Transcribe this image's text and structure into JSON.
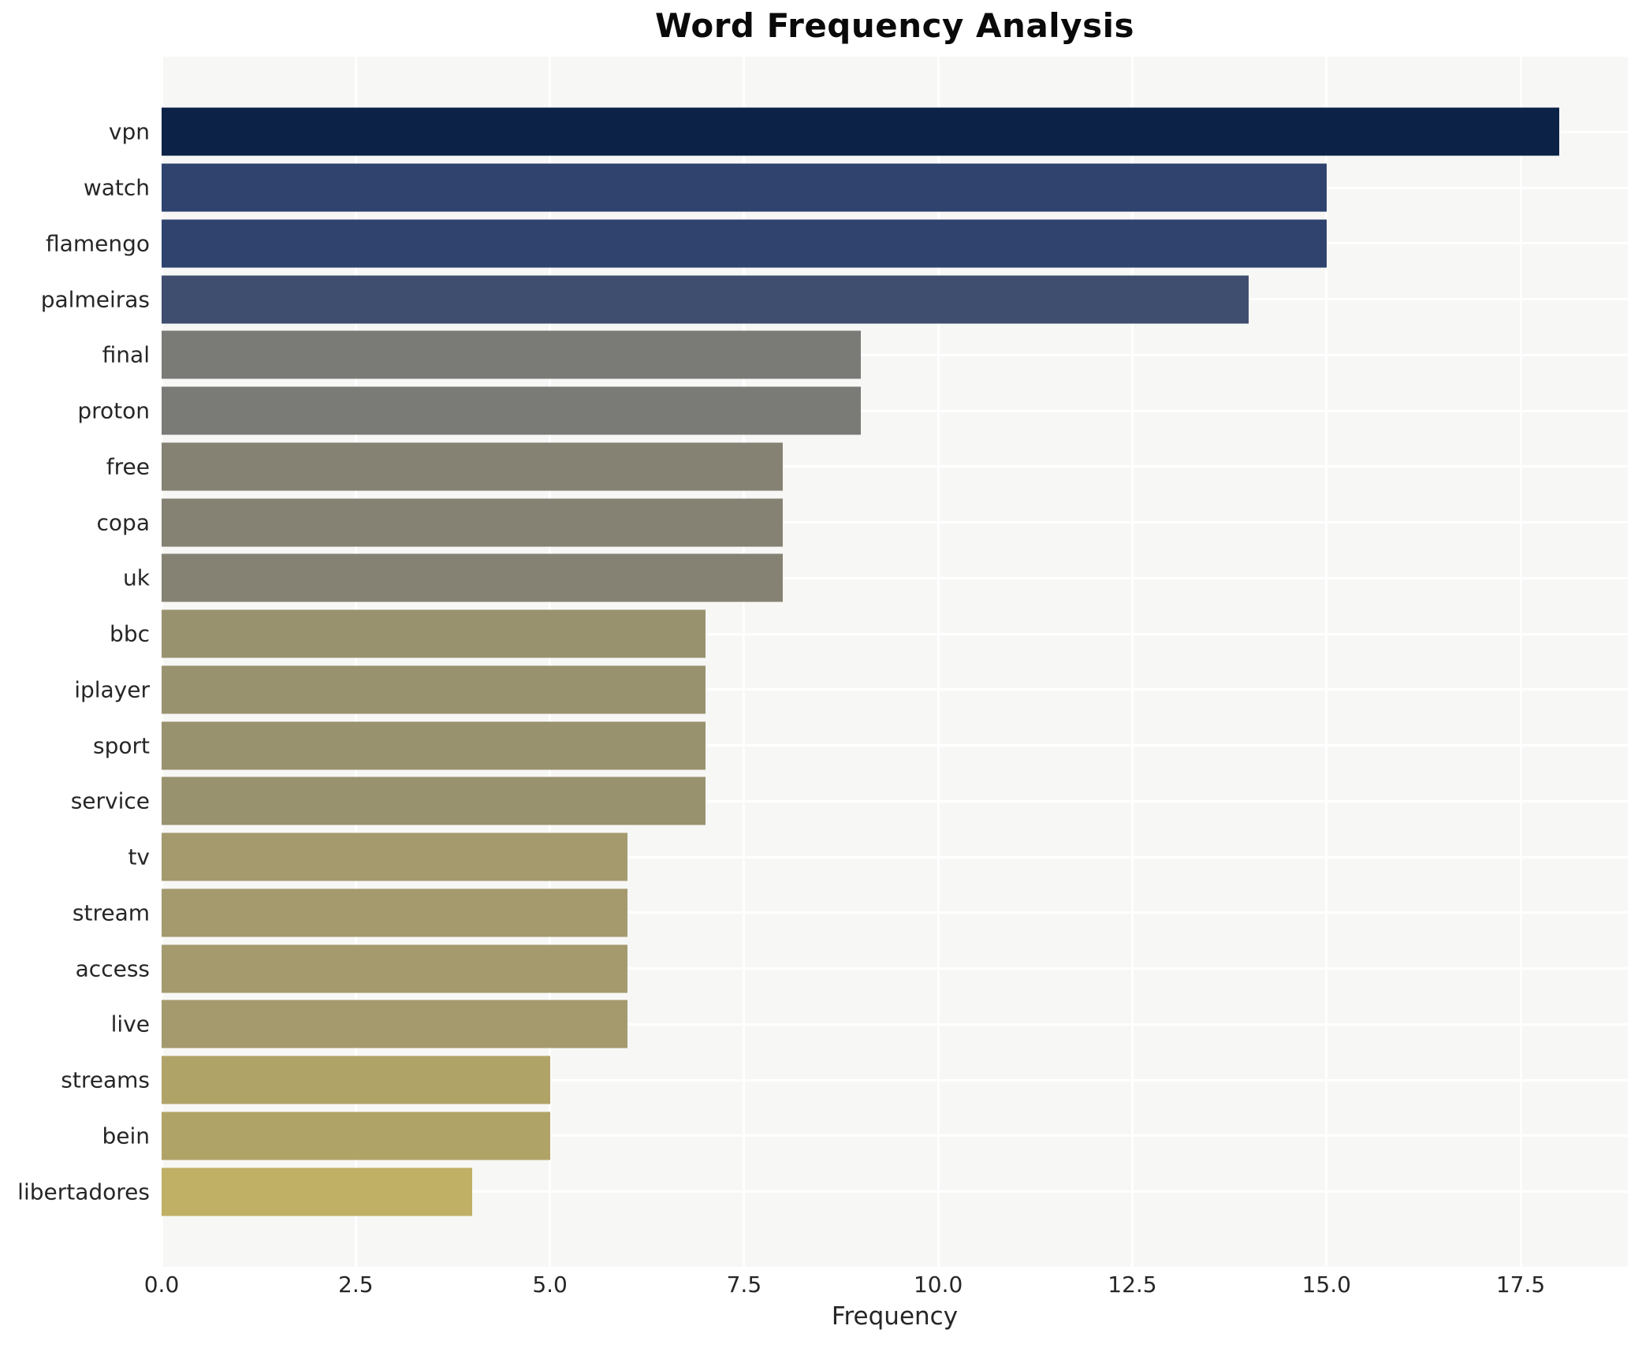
{
  "chart_data": {
    "type": "bar",
    "orientation": "horizontal",
    "title": "Word Frequency Analysis",
    "xlabel": "Frequency",
    "ylabel": "",
    "categories": [
      "vpn",
      "watch",
      "flamengo",
      "palmeiras",
      "final",
      "proton",
      "free",
      "copa",
      "uk",
      "bbc",
      "iplayer",
      "sport",
      "service",
      "tv",
      "stream",
      "access",
      "live",
      "streams",
      "bein",
      "libertadores"
    ],
    "values": [
      18,
      15,
      15,
      14,
      9,
      9,
      8,
      8,
      8,
      7,
      7,
      7,
      7,
      6,
      6,
      6,
      6,
      5,
      5,
      4
    ],
    "colors": [
      "#0c2246",
      "#2f436e",
      "#2f436e",
      "#3f4d6f",
      "#7a7a76",
      "#7a7a76",
      "#868273",
      "#868273",
      "#868273",
      "#99926f",
      "#99926f",
      "#99926f",
      "#99926f",
      "#a49a6e",
      "#a49a6e",
      "#a49a6e",
      "#a49a6e",
      "#b0a367",
      "#b0a367",
      "#bfb066"
    ],
    "xlim": [
      0,
      18.88
    ],
    "xticks": [
      0,
      2.5,
      5,
      7.5,
      10,
      12.5,
      15,
      17.5
    ],
    "xtick_labels": [
      "0.0",
      "2.5",
      "5.0",
      "7.5",
      "10.0",
      "12.5",
      "15.0",
      "17.5"
    ],
    "grid": true,
    "legend_position": "none",
    "plot_background": "#f7f7f6",
    "grid_color": "#ffffff"
  }
}
